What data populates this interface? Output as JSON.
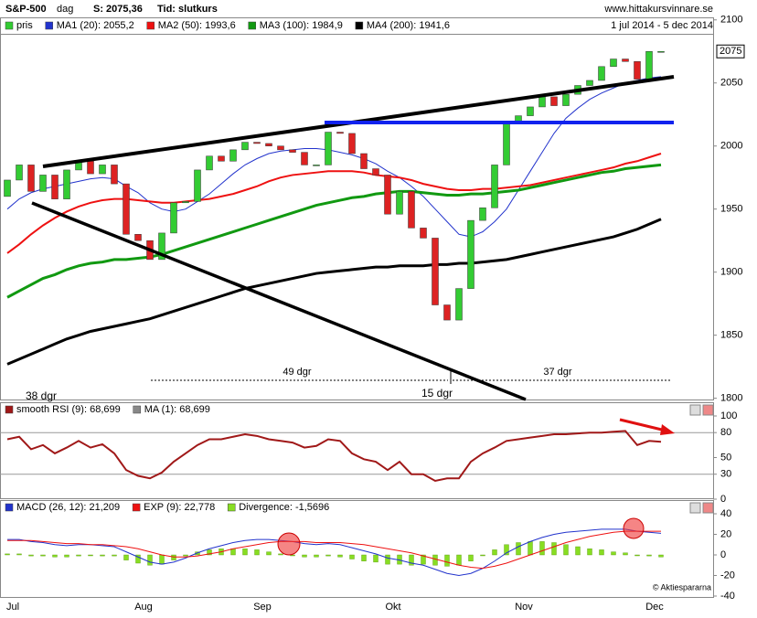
{
  "header": {
    "title": "S&P-500",
    "period": "dag",
    "last": "S: 2075,36",
    "mode": "Tid: slutkurs",
    "site": "www.hittakursvinnare.se",
    "range": "1 jul 2014 - 5 dec 2014"
  },
  "annotations": [
    "49 dgr",
    "37 dgr",
    "15 dgr",
    "38 dgr"
  ],
  "copyright": "© Aktiespararna",
  "chart_data": [
    {
      "type": "candlestick",
      "name": "pris",
      "up_color": "#33cc33",
      "down_color": "#dd2222",
      "categories": [
        "Jul",
        null,
        null,
        null,
        null,
        null,
        null,
        null,
        null,
        null,
        null,
        "Aug",
        null,
        null,
        null,
        null,
        null,
        null,
        null,
        null,
        null,
        "Sep",
        null,
        null,
        null,
        null,
        null,
        null,
        null,
        null,
        null,
        null,
        "Okt",
        null,
        null,
        null,
        null,
        null,
        null,
        null,
        null,
        null,
        null,
        "Nov",
        null,
        null,
        null,
        null,
        null,
        null,
        null,
        null,
        null,
        null,
        "Dec",
        null
      ],
      "open": [
        1960,
        1973,
        1985,
        1964,
        1977,
        1958,
        1981,
        1988,
        1978,
        1985,
        1970,
        1930,
        1925,
        1910,
        1931,
        1955,
        1956,
        1981,
        1992,
        1988,
        1997,
        2003,
        2002,
        2000,
        1997,
        1995,
        1985,
        1985,
        2011,
        2010,
        1994,
        1982,
        1977,
        1946,
        1964,
        1935,
        1927,
        1874,
        1862,
        1887,
        1941,
        1951,
        1985,
        2018,
        2024,
        2031,
        2039,
        2032,
        2041,
        2048,
        2052,
        2063,
        2069,
        2067,
        2053,
        2075
      ],
      "close": [
        1973,
        1985,
        1964,
        1977,
        1958,
        1981,
        1988,
        1978,
        1985,
        1970,
        1930,
        1925,
        1910,
        1931,
        1955,
        1956,
        1981,
        1992,
        1988,
        1997,
        2003,
        2002,
        2000,
        1997,
        1995,
        1985,
        1985,
        2011,
        2010,
        1994,
        1982,
        1977,
        1946,
        1964,
        1935,
        1927,
        1874,
        1862,
        1887,
        1941,
        1951,
        1985,
        2018,
        2024,
        2031,
        2039,
        2032,
        2041,
        2048,
        2052,
        2063,
        2069,
        2067,
        2053,
        2075,
        2075
      ],
      "series": [
        {
          "name": "MA1 (20): 2055,2",
          "color": "#2233cc",
          "width": 1,
          "values": [
            1950,
            1958,
            1963,
            1966,
            1968,
            1970,
            1972,
            1974,
            1975,
            1974,
            1968,
            1963,
            1955,
            1950,
            1948,
            1950,
            1956,
            1962,
            1970,
            1978,
            1985,
            1990,
            1994,
            1996,
            1997,
            1998,
            1998,
            1997,
            1995,
            1993,
            1990,
            1986,
            1980,
            1975,
            1968,
            1960,
            1950,
            1940,
            1930,
            1928,
            1932,
            1940,
            1950,
            1965,
            1980,
            1995,
            2010,
            2022,
            2030,
            2037,
            2042,
            2046,
            2050,
            2052,
            2054,
            2055
          ]
        },
        {
          "name": "MA2 (50): 1993,6",
          "color": "#ee1111",
          "width": 2,
          "values": [
            1915,
            1922,
            1930,
            1937,
            1943,
            1948,
            1952,
            1955,
            1957,
            1958,
            1958,
            1957,
            1956,
            1955,
            1955,
            1956,
            1957,
            1958,
            1960,
            1962,
            1965,
            1968,
            1972,
            1975,
            1977,
            1978,
            1979,
            1980,
            1980,
            1980,
            1979,
            1977,
            1976,
            1975,
            1973,
            1970,
            1968,
            1966,
            1965,
            1965,
            1966,
            1966,
            1967,
            1968,
            1969,
            1971,
            1973,
            1975,
            1977,
            1979,
            1981,
            1983,
            1986,
            1988,
            1991,
            1994
          ]
        },
        {
          "name": "MA3 (100): 1984,9",
          "color": "#119911",
          "width": 3,
          "values": [
            1880,
            1885,
            1890,
            1895,
            1898,
            1902,
            1905,
            1907,
            1908,
            1910,
            1910,
            1911,
            1912,
            1914,
            1917,
            1920,
            1923,
            1926,
            1929,
            1932,
            1935,
            1938,
            1941,
            1944,
            1947,
            1950,
            1953,
            1955,
            1957,
            1959,
            1960,
            1962,
            1963,
            1964,
            1964,
            1963,
            1962,
            1961,
            1961,
            1962,
            1962,
            1963,
            1964,
            1965,
            1967,
            1969,
            1971,
            1973,
            1975,
            1977,
            1979,
            1980,
            1982,
            1983,
            1984,
            1985
          ]
        },
        {
          "name": "MA4 (200): 1941,6",
          "color": "#000000",
          "width": 3,
          "values": [
            1827,
            1831,
            1835,
            1839,
            1843,
            1847,
            1850,
            1853,
            1855,
            1857,
            1859,
            1861,
            1863,
            1866,
            1869,
            1872,
            1875,
            1878,
            1881,
            1884,
            1887,
            1889,
            1891,
            1893,
            1895,
            1897,
            1899,
            1900,
            1901,
            1902,
            1903,
            1904,
            1904,
            1905,
            1905,
            1905,
            1906,
            1906,
            1907,
            1907,
            1908,
            1909,
            1910,
            1912,
            1914,
            1916,
            1918,
            1920,
            1922,
            1924,
            1926,
            1928,
            1931,
            1934,
            1938,
            1942
          ]
        }
      ],
      "ylim": [
        1799,
        2102
      ],
      "yticks": [
        1800,
        1850,
        1900,
        1950,
        2000,
        2050,
        2100
      ],
      "last_price": 2075
    },
    {
      "type": "line",
      "series": [
        {
          "name": "smooth RSI (9): 68,699",
          "color": "#a01818",
          "width": 2,
          "values": [
            72,
            75,
            60,
            65,
            55,
            62,
            70,
            62,
            66,
            55,
            35,
            28,
            25,
            32,
            45,
            55,
            65,
            72,
            72,
            75,
            78,
            76,
            72,
            70,
            68,
            62,
            64,
            72,
            70,
            55,
            48,
            45,
            35,
            45,
            30,
            30,
            22,
            25,
            25,
            45,
            55,
            62,
            70,
            72,
            74,
            76,
            78,
            78,
            79,
            80,
            80,
            81,
            82,
            65,
            70,
            69
          ]
        }
      ],
      "ma_label": "MA (1): 68,699",
      "ma_color": "#888888",
      "ylim": [
        0,
        100
      ],
      "yticks": [
        0,
        30,
        50,
        80,
        100
      ],
      "hlines": [
        30,
        80
      ]
    },
    {
      "type": "macd",
      "series": [
        {
          "name": "MACD (26, 12): 21,209",
          "color": "#2233cc",
          "width": 1,
          "values": [
            15,
            15,
            13,
            12,
            10,
            9,
            10,
            10,
            9,
            8,
            3,
            -2,
            -7,
            -9,
            -7,
            -3,
            2,
            6,
            9,
            12,
            14,
            15,
            15,
            14,
            13,
            11,
            10,
            11,
            10,
            7,
            4,
            1,
            -3,
            -5,
            -8,
            -10,
            -14,
            -18,
            -20,
            -18,
            -13,
            -6,
            2,
            8,
            13,
            17,
            20,
            22,
            23,
            24,
            25,
            25,
            25,
            23,
            22,
            21
          ]
        },
        {
          "name": "EXP (9): 22,778",
          "color": "#ee1111",
          "width": 1,
          "values": [
            14,
            14,
            14,
            13,
            12,
            11,
            11,
            10,
            10,
            9,
            8,
            6,
            3,
            0,
            -2,
            -2,
            -1,
            1,
            3,
            6,
            8,
            10,
            12,
            13,
            13,
            13,
            12,
            12,
            12,
            11,
            10,
            8,
            6,
            4,
            2,
            -1,
            -4,
            -7,
            -10,
            -12,
            -13,
            -11,
            -8,
            -4,
            0,
            4,
            8,
            12,
            15,
            18,
            20,
            22,
            23,
            23,
            23,
            23
          ]
        }
      ],
      "divergence": {
        "name": "Divergence: -1,5696",
        "color": "#88dd22",
        "values": [
          1,
          1,
          -1,
          -1,
          -2,
          -2,
          -1,
          0,
          -1,
          -1,
          -5,
          -8,
          -10,
          -9,
          -5,
          -1,
          3,
          5,
          6,
          6,
          6,
          5,
          3,
          1,
          0,
          -2,
          -2,
          -1,
          -2,
          -4,
          -6,
          -7,
          -9,
          -9,
          -10,
          -9,
          -10,
          -11,
          -10,
          -6,
          0,
          5,
          10,
          12,
          13,
          13,
          12,
          10,
          8,
          6,
          5,
          3,
          2,
          0,
          -1,
          -2
        ]
      },
      "ylim": [
        -40,
        40
      ],
      "yticks": [
        -40,
        -20,
        0,
        20,
        40
      ]
    }
  ]
}
